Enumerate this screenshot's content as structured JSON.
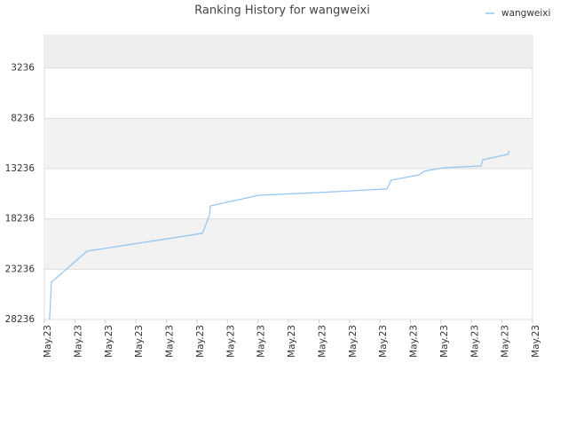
{
  "chart_data": {
    "type": "line",
    "title": "Ranking History for wangweixi",
    "series": [
      {
        "name": "wangweixi",
        "color": "#92c5ef",
        "x": [
          0.17,
          0.2,
          0.23,
          1.4,
          5.18,
          5.41,
          5.44,
          7.04,
          8.96,
          11.23,
          11.37,
          12.28,
          12.45,
          13.09,
          14.31,
          14.37,
          15.19,
          15.24
        ],
        "values": [
          28236,
          26470,
          24530,
          21440,
          19670,
          17900,
          16940,
          15880,
          15620,
          15260,
          14380,
          13850,
          13500,
          13150,
          12970,
          12350,
          11820,
          11470
        ]
      }
    ],
    "xlim": [
      0,
      16
    ],
    "xticks": [
      {
        "value": 0,
        "label": "May.23"
      },
      {
        "value": 1,
        "label": "May.23"
      },
      {
        "value": 2,
        "label": "May.23"
      },
      {
        "value": 3,
        "label": "May.23"
      },
      {
        "value": 4,
        "label": "May.23"
      },
      {
        "value": 5,
        "label": "May.23"
      },
      {
        "value": 6,
        "label": "May.23"
      },
      {
        "value": 7,
        "label": "May.23"
      },
      {
        "value": 8,
        "label": "May.23"
      },
      {
        "value": 9,
        "label": "May.23"
      },
      {
        "value": 10,
        "label": "May.23"
      },
      {
        "value": 11,
        "label": "May.23"
      },
      {
        "value": 12,
        "label": "May.23"
      },
      {
        "value": 13,
        "label": "May.23"
      },
      {
        "value": 14,
        "label": "May.23"
      },
      {
        "value": 15,
        "label": "May.23"
      },
      {
        "value": 16,
        "label": "May.23"
      }
    ],
    "ylim": [
      28236,
      0
    ],
    "yticks": [
      3236,
      8236,
      13236,
      18236,
      23236,
      28236
    ],
    "grid": true,
    "legend": "top-right"
  }
}
